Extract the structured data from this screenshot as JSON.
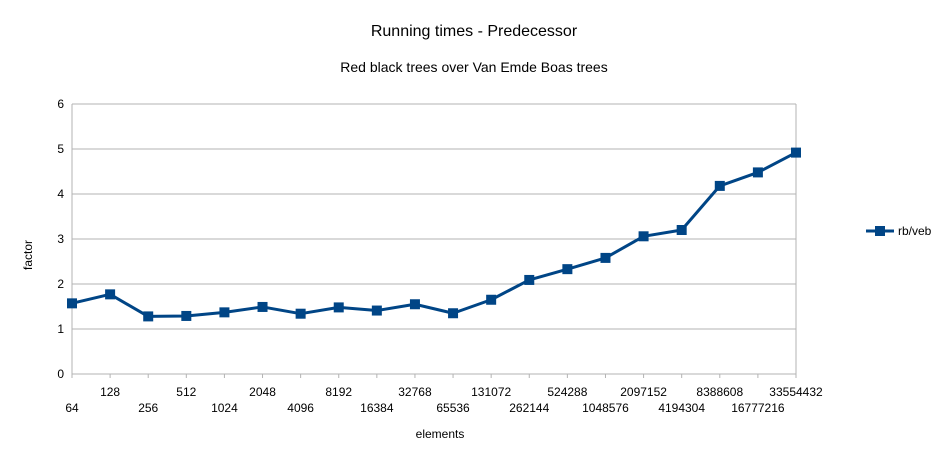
{
  "chart_data": {
    "type": "line",
    "title": "Running times - Predecessor",
    "subtitle": "Red black trees over Van Emde Boas trees",
    "xlabel": "elements",
    "ylabel": "factor",
    "ylim": [
      0,
      6
    ],
    "yticks": [
      "0",
      "1",
      "2",
      "3",
      "4",
      "5",
      "6"
    ],
    "grid": true,
    "legend_position": "right",
    "categories": [
      "64",
      "128",
      "256",
      "512",
      "1024",
      "2048",
      "4096",
      "8192",
      "16384",
      "32768",
      "65536",
      "131072",
      "262144",
      "524288",
      "1048576",
      "2097152",
      "4194304",
      "8388608",
      "16777216",
      "33554432"
    ],
    "series": [
      {
        "name": "rb/veb",
        "color": "#004586",
        "values": [
          1.57,
          1.77,
          1.28,
          1.29,
          1.37,
          1.49,
          1.34,
          1.48,
          1.41,
          1.55,
          1.35,
          1.65,
          2.09,
          2.33,
          2.58,
          3.06,
          3.2,
          4.18,
          4.48,
          4.92
        ]
      }
    ]
  }
}
